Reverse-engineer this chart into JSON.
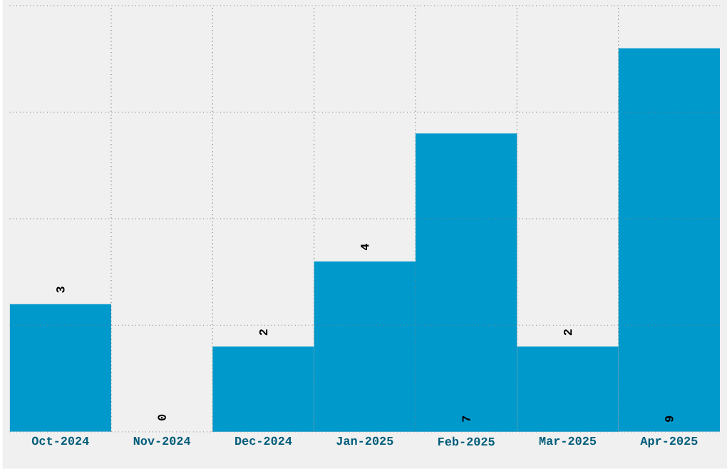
{
  "chart_data": {
    "type": "bar",
    "categories": [
      "Oct-2024",
      "Nov-2024",
      "Dec-2024",
      "Jan-2025",
      "Feb-2025",
      "Mar-2025",
      "Apr-2025"
    ],
    "values": [
      3,
      0,
      2,
      4,
      7,
      2,
      9
    ],
    "color": "#0099cc",
    "ylim": [
      0,
      10
    ],
    "yticks": [
      {
        "value": 0,
        "label": null
      },
      {
        "value": 2.5,
        "label": null
      },
      {
        "value": 5,
        "label": null
      },
      {
        "value": 7.5,
        "label": null
      },
      {
        "value": 10,
        "label": null
      }
    ],
    "tick_labels": "x",
    "grid": true,
    "data_labels": true
  }
}
